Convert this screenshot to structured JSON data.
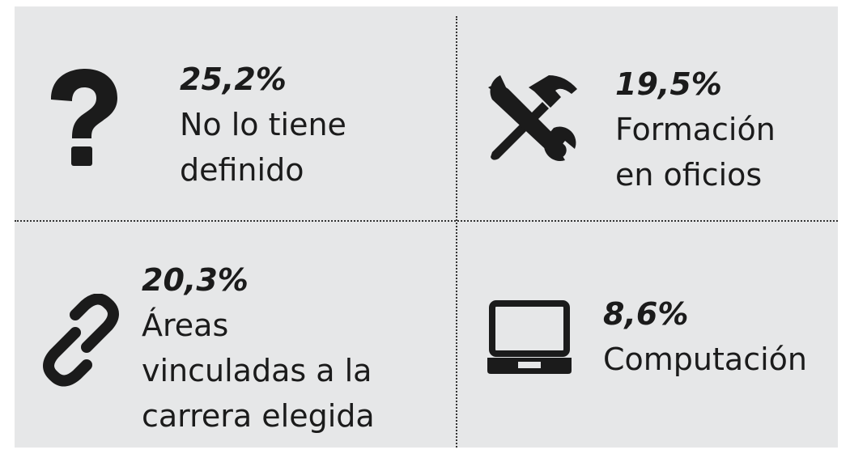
{
  "items": [
    {
      "value_label": "25,2%",
      "lines": [
        "No lo tiene",
        "definido"
      ]
    },
    {
      "value_label": "19,5%",
      "lines": [
        "Formación",
        "en oficios"
      ]
    },
    {
      "value_label": "20,3%",
      "lines": [
        "Áreas",
        "vinculadas a la",
        "carrera elegida"
      ]
    },
    {
      "value_label": "8,6%",
      "lines": [
        "Computación"
      ]
    }
  ]
}
